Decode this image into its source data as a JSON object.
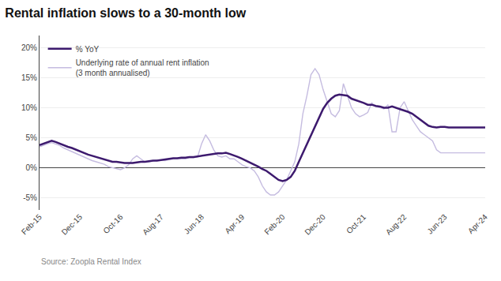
{
  "chart_data": {
    "type": "line",
    "title": "Rental inflation slows to a 30-month low",
    "annotations": [
      "Source: Zoopla Rental Index"
    ],
    "categories": [
      "Feb-15",
      null,
      null,
      null,
      null,
      null,
      null,
      null,
      null,
      null,
      "Dec-15",
      null,
      null,
      null,
      null,
      null,
      null,
      null,
      null,
      null,
      "Oct-16",
      null,
      null,
      null,
      null,
      null,
      null,
      null,
      null,
      null,
      "Aug-17",
      null,
      null,
      null,
      null,
      null,
      null,
      null,
      null,
      null,
      "Jun-18",
      null,
      null,
      null,
      null,
      null,
      null,
      null,
      null,
      null,
      "Apr-19",
      null,
      null,
      null,
      null,
      null,
      null,
      null,
      null,
      null,
      "Feb-20",
      null,
      null,
      null,
      null,
      null,
      null,
      null,
      null,
      null,
      "Dec-20",
      null,
      null,
      null,
      null,
      null,
      null,
      null,
      null,
      null,
      "Oct-21",
      null,
      null,
      null,
      null,
      null,
      null,
      null,
      null,
      null,
      "Aug-22",
      null,
      null,
      null,
      null,
      null,
      null,
      null,
      null,
      null,
      "Jun-23",
      null,
      null,
      null,
      null,
      null,
      null,
      null,
      null,
      null,
      "Apr-24"
    ],
    "series": [
      {
        "name": "Underlying rate of annual rent inflation\n(3 month annualised)",
        "color": "#c5bce0",
        "values": [
          3.5,
          3.8,
          4.0,
          4.2,
          4.0,
          3.7,
          3.3,
          3.0,
          2.7,
          2.3,
          2.0,
          1.7,
          1.5,
          1.2,
          1.0,
          0.8,
          0.6,
          0.2,
          0.0,
          -0.2,
          -0.3,
          0.0,
          0.5,
          1.5,
          2.0,
          1.5,
          1.0,
          1.0,
          1.2,
          1.3,
          1.3,
          1.2,
          1.4,
          1.5,
          1.6,
          1.5,
          1.5,
          1.7,
          1.7,
          1.8,
          4.0,
          5.5,
          4.5,
          3.0,
          2.0,
          1.8,
          2.0,
          1.5,
          1.5,
          1.0,
          0.5,
          0.2,
          0.0,
          -0.5,
          -1.5,
          -3.0,
          -4.0,
          -4.5,
          -4.5,
          -4.0,
          -3.0,
          -2.0,
          -0.5,
          1.0,
          4.0,
          9.0,
          12.0,
          15.5,
          16.5,
          15.5,
          13.0,
          11.0,
          9.0,
          8.5,
          9.5,
          14.0,
          12.0,
          10.0,
          9.0,
          8.5,
          8.8,
          9.2,
          10.8,
          10.2,
          10.0,
          9.8,
          10.5,
          6.0,
          6.0,
          10.0,
          11.0,
          9.5,
          8.0,
          7.0,
          6.0,
          5.5,
          5.0,
          4.5,
          3.0,
          2.5,
          2.5,
          2.5,
          2.5,
          2.5,
          2.5,
          2.5,
          2.5,
          2.5,
          2.5,
          2.5,
          2.5
        ]
      },
      {
        "name": "% YoY",
        "color": "#3d1a6e",
        "values": [
          3.8,
          4.0,
          4.3,
          4.5,
          4.3,
          4.0,
          3.7,
          3.5,
          3.3,
          3.0,
          2.7,
          2.4,
          2.2,
          2.0,
          1.8,
          1.5,
          1.3,
          1.2,
          1.0,
          1.0,
          0.9,
          0.8,
          0.8,
          0.8,
          0.9,
          1.0,
          1.0,
          1.1,
          1.2,
          1.2,
          1.3,
          1.4,
          1.5,
          1.6,
          1.6,
          1.7,
          1.7,
          1.8,
          1.8,
          1.9,
          2.0,
          2.1,
          2.2,
          2.3,
          2.4,
          2.4,
          2.5,
          2.3,
          2.1,
          1.8,
          1.5,
          1.2,
          0.8,
          0.5,
          0.2,
          -0.2,
          -0.5,
          -1.0,
          -1.5,
          -2.0,
          -2.2,
          -2.0,
          -1.5,
          -0.5,
          1.0,
          2.5,
          4.0,
          5.5,
          7.0,
          8.5,
          9.8,
          10.8,
          11.5,
          12.0,
          12.2,
          12.1,
          12.0,
          11.5,
          11.3,
          11.0,
          10.8,
          10.5,
          10.5,
          10.3,
          10.2,
          10.0,
          10.0,
          10.2,
          10.0,
          9.8,
          9.5,
          9.3,
          9.0,
          8.5,
          8.0,
          7.5,
          7.0,
          6.8,
          6.7,
          6.8,
          6.8,
          6.7,
          6.7,
          6.7,
          6.7,
          6.7,
          6.7,
          6.7,
          6.7,
          6.7,
          6.7
        ]
      }
    ],
    "ylim": [
      -7,
      22
    ],
    "yticks": [
      {
        "value": -5,
        "label": "-5%"
      },
      {
        "value": 0,
        "label": "0%"
      },
      {
        "value": 5,
        "label": "5%"
      },
      {
        "value": 10,
        "label": "10%"
      },
      {
        "value": 15,
        "label": "15%"
      },
      {
        "value": 20,
        "label": "20%"
      }
    ],
    "grid": true,
    "legend": "upper left"
  }
}
